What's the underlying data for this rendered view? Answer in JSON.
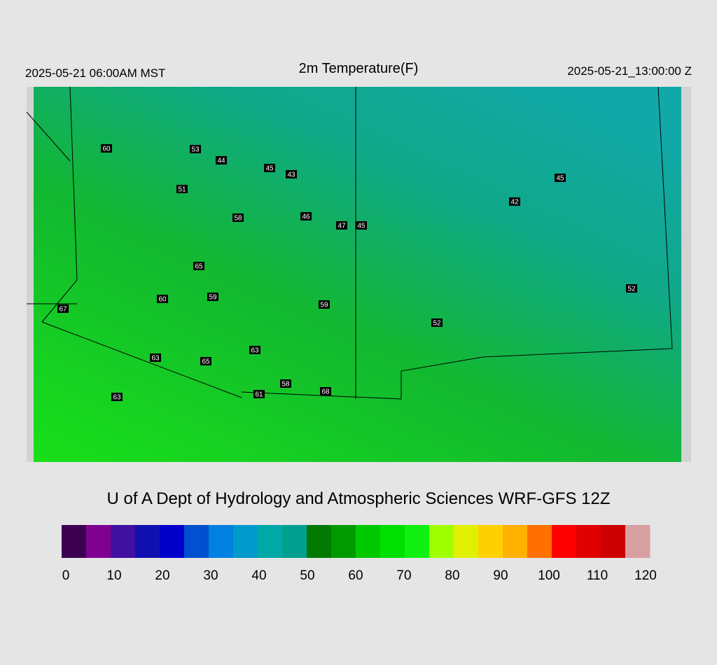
{
  "header": {
    "left": "2025-05-21 06:00AM MST",
    "title": "2m Temperature(F)",
    "right": "2025-05-21_13:00:00 Z"
  },
  "stations": [
    60,
    53,
    44,
    45,
    43,
    51,
    58,
    46,
    47,
    45,
    42,
    45,
    65,
    60,
    59,
    59,
    52,
    52,
    67,
    63,
    63,
    65,
    58,
    61,
    68,
    63
  ],
  "credit": "U of A Dept of Hydrology and Atmospheric Sciences WRF-GFS 12Z",
  "colorbar": {
    "range": [
      0,
      120
    ],
    "ticks": [
      0,
      10,
      20,
      30,
      40,
      50,
      60,
      70,
      80,
      90,
      100,
      110,
      120
    ],
    "colors": [
      "#3c0050",
      "#800090",
      "#4010a0",
      "#1010b0",
      "#0000c8",
      "#0050d0",
      "#0080e0",
      "#0099cc",
      "#00a8a8",
      "#00a090",
      "#007a00",
      "#009a00",
      "#00c800",
      "#00e000",
      "#10f010",
      "#a0ff00",
      "#e0f000",
      "#ffd000",
      "#ffb000",
      "#ff7000",
      "#ff0000",
      "#e00000",
      "#cc0000",
      "#d8a0a0"
    ]
  }
}
